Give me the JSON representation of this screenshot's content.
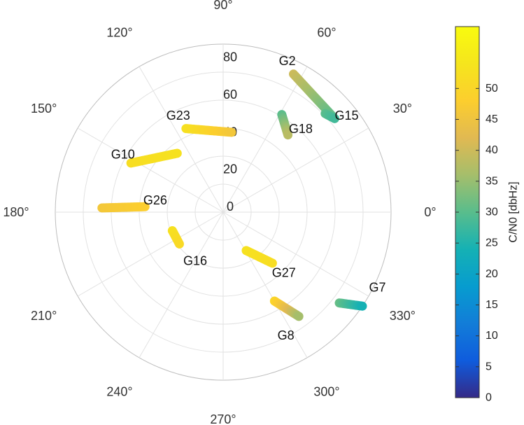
{
  "chart_data": {
    "type": "scatter",
    "projection": "polar",
    "angle_axis": {
      "unit": "degrees",
      "direction": "counterclockwise",
      "zero_at": "right",
      "ticks": [
        0,
        30,
        60,
        90,
        120,
        150,
        180,
        210,
        240,
        270,
        300,
        330
      ],
      "tick_labels": [
        "0°",
        "30°",
        "60°",
        "90°",
        "120°",
        "150°",
        "180°",
        "210°",
        "240°",
        "270°",
        "300°",
        "330°"
      ]
    },
    "radius_axis": {
      "range": [
        0,
        90
      ],
      "ticks": [
        0,
        20,
        40,
        60,
        80
      ],
      "tick_labels": [
        "0",
        "20",
        "40",
        "60",
        "80"
      ],
      "label_angle": 90
    },
    "grid": true,
    "colorbar": {
      "label": "C/N0 [dbHz]",
      "range": [
        0,
        60
      ],
      "ticks": [
        0,
        5,
        10,
        15,
        20,
        25,
        30,
        35,
        40,
        45,
        50
      ],
      "tick_labels": [
        "0",
        "5",
        "10",
        "15",
        "20",
        "25",
        "30",
        "35",
        "40",
        "45",
        "50"
      ],
      "colormap": "parula",
      "placement": "right"
    },
    "satellites": [
      {
        "label": "G2",
        "start": {
          "angle": 63,
          "r": 83
        },
        "end": {
          "angle": 40,
          "r": 78
        },
        "cn0_start": 40,
        "cn0_end": 30,
        "label_pos": {
          "angle": 67,
          "r": 88
        }
      },
      {
        "label": "G15",
        "start": {
          "angle": 44,
          "r": 76
        },
        "end": {
          "angle": 40,
          "r": 78
        },
        "cn0_start": 30,
        "cn0_end": 28,
        "label_pos": {
          "angle": 38,
          "r": 84
        }
      },
      {
        "label": "G18",
        "start": {
          "angle": 59,
          "r": 61
        },
        "end": {
          "angle": 50,
          "r": 54
        },
        "cn0_start": 30,
        "cn0_end": 38,
        "label_pos": {
          "angle": 47,
          "r": 61
        }
      },
      {
        "label": "G23",
        "start": {
          "angle": 114,
          "r": 49
        },
        "end": {
          "angle": 84,
          "r": 43
        },
        "cn0_start": 53,
        "cn0_end": 46,
        "label_pos": {
          "angle": 115,
          "r": 57
        }
      },
      {
        "label": "G10",
        "start": {
          "angle": 152,
          "r": 56
        },
        "end": {
          "angle": 128,
          "r": 40
        },
        "cn0_start": 52,
        "cn0_end": 53,
        "label_pos": {
          "angle": 150,
          "r": 62
        }
      },
      {
        "label": "G26",
        "start": {
          "angle": 178,
          "r": 65
        },
        "end": {
          "angle": 176,
          "r": 42
        },
        "cn0_start": 46,
        "cn0_end": 48,
        "label_pos": {
          "angle": 170,
          "r": 37
        }
      },
      {
        "label": "G16",
        "start": {
          "angle": 200,
          "r": 29
        },
        "end": {
          "angle": 216,
          "r": 29
        },
        "cn0_start": 53,
        "cn0_end": 51,
        "label_pos": {
          "angle": 240,
          "r": 30
        }
      },
      {
        "label": "G27",
        "start": {
          "angle": 301,
          "r": 24
        },
        "end": {
          "angle": 314,
          "r": 38
        },
        "cn0_start": 53,
        "cn0_end": 52,
        "label_pos": {
          "angle": 315,
          "r": 46
        }
      },
      {
        "label": "G8",
        "start": {
          "angle": 300,
          "r": 55
        },
        "end": {
          "angle": 306,
          "r": 69
        },
        "cn0_start": 50,
        "cn0_end": 36,
        "label_pos": {
          "angle": 297,
          "r": 74
        }
      },
      {
        "label": "G7",
        "start": {
          "angle": 322,
          "r": 79
        },
        "end": {
          "angle": 326,
          "r": 90
        },
        "cn0_start": 31,
        "cn0_end": 24,
        "label_pos": {
          "angle": 334,
          "r": 92
        }
      }
    ]
  }
}
